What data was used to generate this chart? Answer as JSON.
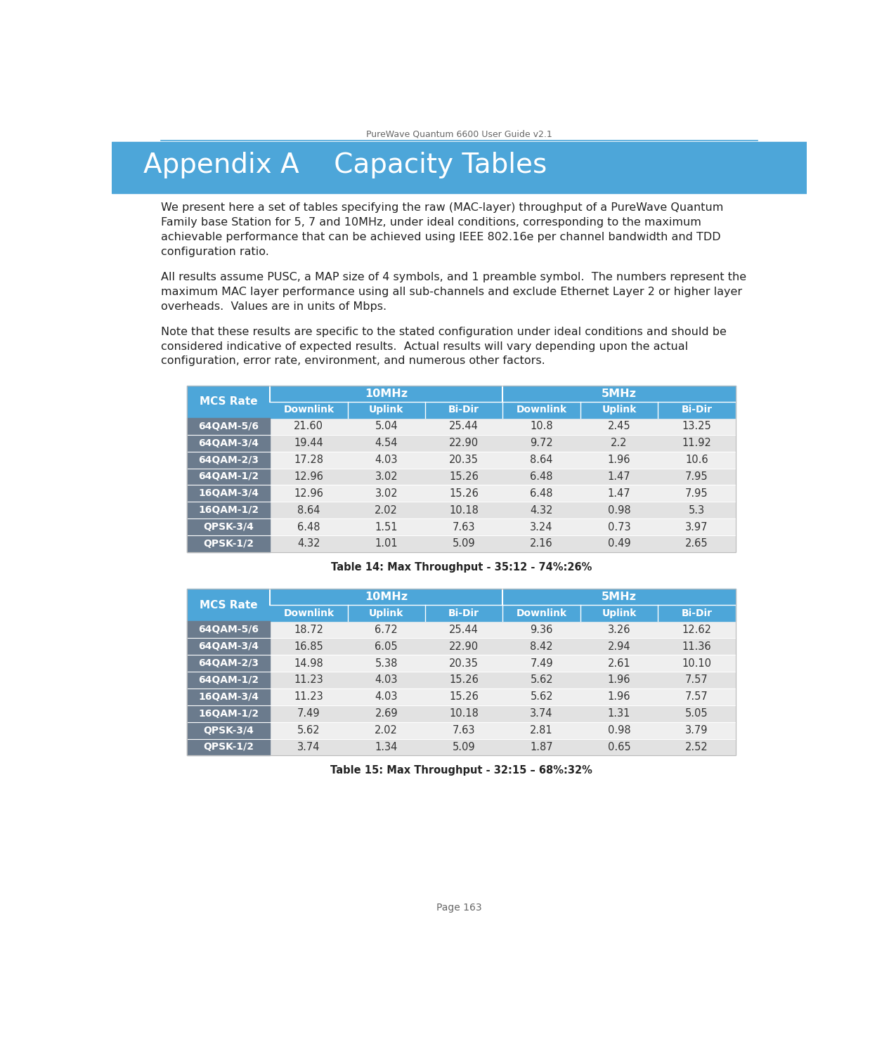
{
  "page_title": "PureWave Quantum 6600 User Guide v2.1",
  "page_number": "Page 163",
  "section_title": "Appendix A    Capacity Tables",
  "body_text_1": "We present here a set of tables specifying the raw (MAC-layer) throughput of a PureWave Quantum Family base Station for 5, 7 and 10MHz, under ideal conditions, corresponding to the maximum achievable performance that can be achieved using IEEE 802.16e per channel bandwidth and TDD configuration ratio.",
  "body_text_2": "All results assume PUSC, a MAP size of 4 symbols, and 1 preamble symbol.  The numbers represent the maximum MAC layer performance using all sub-channels and exclude Ethernet Layer 2 or higher layer overheads.  Values are in units of Mbps.",
  "body_text_3": "Note that these results are specific to the stated configuration under ideal conditions and should be considered indicative of expected results.  Actual results will vary depending upon the actual configuration, error rate, environment, and numerous other factors.",
  "header_bg_color": "#4da6d9",
  "mcs_col_bg_color": "#6b7b8d",
  "row_bg_even": "#efefef",
  "row_bg_odd": "#e2e2e2",
  "header_text_color": "#ffffff",
  "mcs_text_color": "#ffffff",
  "data_text_color": "#333333",
  "table1_caption": "Table 14: Max Throughput - 35:12 - 74%:26%",
  "table2_caption": "Table 15: Max Throughput - 32:15 – 68%:32%",
  "mcs_rates": [
    "64QAM-5/6",
    "64QAM-3/4",
    "64QAM-2/3",
    "64QAM-1/2",
    "16QAM-3/4",
    "16QAM-1/2",
    "QPSK-3/4",
    "QPSK-1/2"
  ],
  "table1_data_str": [
    [
      "21.60",
      "5.04",
      "25.44",
      "10.8",
      "2.45",
      "13.25"
    ],
    [
      "19.44",
      "4.54",
      "22.90",
      "9.72",
      "2.2",
      "11.92"
    ],
    [
      "17.28",
      "4.03",
      "20.35",
      "8.64",
      "1.96",
      "10.6"
    ],
    [
      "12.96",
      "3.02",
      "15.26",
      "6.48",
      "1.47",
      "7.95"
    ],
    [
      "12.96",
      "3.02",
      "15.26",
      "6.48",
      "1.47",
      "7.95"
    ],
    [
      "8.64",
      "2.02",
      "10.18",
      "4.32",
      "0.98",
      "5.3"
    ],
    [
      "6.48",
      "1.51",
      "7.63",
      "3.24",
      "0.73",
      "3.97"
    ],
    [
      "4.32",
      "1.01",
      "5.09",
      "2.16",
      "0.49",
      "2.65"
    ]
  ],
  "table2_data_str": [
    [
      "18.72",
      "6.72",
      "25.44",
      "9.36",
      "3.26",
      "12.62"
    ],
    [
      "16.85",
      "6.05",
      "22.90",
      "8.42",
      "2.94",
      "11.36"
    ],
    [
      "14.98",
      "5.38",
      "20.35",
      "7.49",
      "2.61",
      "10.10"
    ],
    [
      "11.23",
      "4.03",
      "15.26",
      "5.62",
      "1.96",
      "7.57"
    ],
    [
      "11.23",
      "4.03",
      "15.26",
      "5.62",
      "1.96",
      "7.57"
    ],
    [
      "7.49",
      "2.69",
      "10.18",
      "3.74",
      "1.31",
      "5.05"
    ],
    [
      "5.62",
      "2.02",
      "7.63",
      "2.81",
      "0.98",
      "3.79"
    ],
    [
      "3.74",
      "1.34",
      "5.09",
      "1.87",
      "0.65",
      "2.52"
    ]
  ],
  "body_text_lines_1": [
    "We present here a set of tables specifying the raw (MAC-layer) throughput of a PureWave Quantum",
    "Family base Station for 5, 7 and 10MHz, under ideal conditions, corresponding to the maximum",
    "achievable performance that can be achieved using IEEE 802.16e per channel bandwidth and TDD",
    "configuration ratio."
  ],
  "body_text_lines_2": [
    "All results assume PUSC, a MAP size of 4 symbols, and 1 preamble symbol.  The numbers represent the",
    "maximum MAC layer performance using all sub-channels and exclude Ethernet Layer 2 or higher layer",
    "overheads.  Values are in units of Mbps."
  ],
  "body_text_lines_3": [
    "Note that these results are specific to the stated configuration under ideal conditions and should be",
    "considered indicative of expected results.  Actual results will vary depending upon the actual",
    "configuration, error rate, environment, and numerous other factors."
  ]
}
